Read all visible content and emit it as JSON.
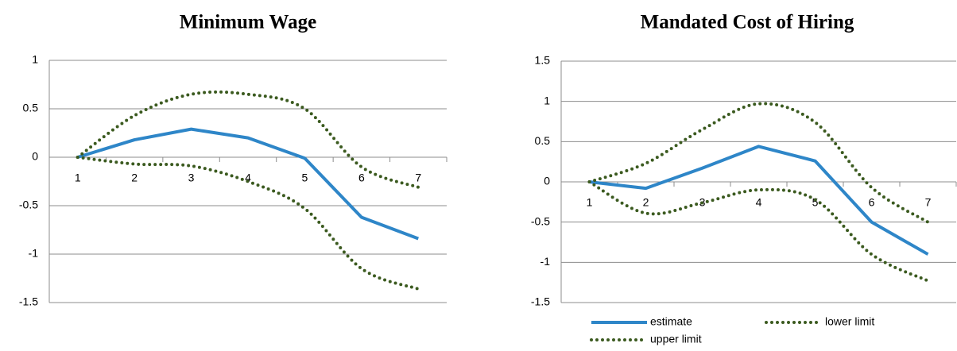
{
  "chart_data": [
    {
      "type": "line",
      "title": "Minimum Wage",
      "categories": [
        "1",
        "2",
        "3",
        "4",
        "5",
        "6",
        "7"
      ],
      "ylim": [
        -1.5,
        1
      ],
      "yticks": [
        -1.5,
        -1,
        -0.5,
        0,
        0.5,
        1
      ],
      "grid": true,
      "series": [
        {
          "color": "#2e86c8",
          "style": "solid",
          "smooth": false,
          "values": [
            0,
            0.18,
            0.29,
            0.2,
            -0.01,
            -0.62,
            -0.84
          ]
        },
        {
          "color": "#3b5a1f",
          "style": "dotted",
          "smooth": true,
          "values": [
            0,
            -0.07,
            -0.09,
            -0.25,
            -0.53,
            -1.15,
            -1.36
          ]
        },
        {
          "color": "#3b5a1f",
          "style": "dotted",
          "smooth": true,
          "values": [
            0,
            0.43,
            0.65,
            0.65,
            0.5,
            -0.1,
            -0.31
          ]
        }
      ]
    },
    {
      "type": "line",
      "title": "Mandated Cost of Hiring",
      "categories": [
        "1",
        "2",
        "3",
        "4",
        "5",
        "6",
        "7"
      ],
      "ylim": [
        -1.5,
        1.5
      ],
      "yticks": [
        -1.5,
        -1,
        -0.5,
        0,
        0.5,
        1,
        1.5
      ],
      "grid": true,
      "legend": "bottom",
      "series": [
        {
          "name": "estimate",
          "color": "#2e86c8",
          "style": "solid",
          "smooth": false,
          "values": [
            0,
            -0.08,
            0.17,
            0.44,
            0.26,
            -0.5,
            -0.9
          ]
        },
        {
          "name": "lower limit",
          "color": "#3b5a1f",
          "style": "dotted",
          "smooth": true,
          "values": [
            0,
            -0.39,
            -0.26,
            -0.1,
            -0.22,
            -0.9,
            -1.23
          ]
        },
        {
          "name": "upper limit",
          "color": "#3b5a1f",
          "style": "dotted",
          "smooth": true,
          "values": [
            0,
            0.23,
            0.65,
            0.97,
            0.74,
            -0.07,
            -0.5
          ]
        }
      ]
    }
  ]
}
